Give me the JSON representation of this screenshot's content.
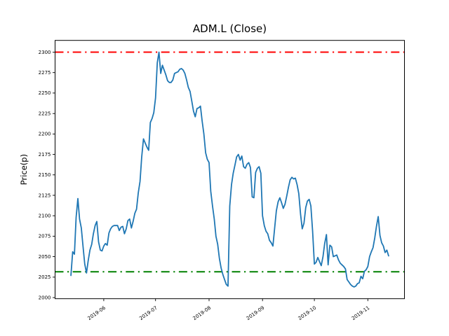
{
  "window": {
    "background": "#ffffff"
  },
  "chart_data": {
    "type": "line",
    "title": "ADM.L (Close)",
    "ylabel": "Price(p)",
    "xlabel": "",
    "legend": "none",
    "grid": false,
    "series_name": "Close price",
    "series_color": "#1f77b4",
    "x_start_date": "2019-05-13",
    "x_end_date": "2019-11-13",
    "x_tick_labels": [
      "2019-06",
      "2019-07",
      "2019-08",
      "2019-09",
      "2019-10",
      "2019-11"
    ],
    "x_tick_day_offsets": [
      19,
      49,
      80,
      111,
      141,
      172
    ],
    "y_ticks": [
      2000,
      2025,
      2050,
      2075,
      2100,
      2125,
      2150,
      2175,
      2200,
      2225,
      2250,
      2275,
      2300
    ],
    "ylim": [
      1998.6,
      2314.4
    ],
    "xlim_days": [
      -9.2,
      193.2
    ],
    "thresholds": [
      {
        "name": "upper-threshold",
        "value": 2300,
        "color": "#ff0000",
        "style": "dashdot"
      },
      {
        "name": "lower-threshold",
        "value": 2031.5,
        "color": "#008000",
        "style": "dashdot"
      }
    ],
    "values": [
      2027,
      2056,
      2053,
      2098,
      2121,
      2096,
      2085,
      2062,
      2041,
      2030,
      2045,
      2058,
      2065,
      2078,
      2088,
      2093,
      2068,
      2058,
      2057,
      2063,
      2066,
      2064,
      2079,
      2084,
      2087,
      2088,
      2088,
      2088,
      2082,
      2086,
      2087,
      2078,
      2084,
      2094,
      2096,
      2085,
      2093,
      2103,
      2108,
      2128,
      2142,
      2172,
      2194,
      2189,
      2184,
      2180,
      2214,
      2219,
      2226,
      2244,
      2287,
      2300,
      2274,
      2284,
      2278,
      2272,
      2265,
      2263,
      2263,
      2266,
      2274,
      2275,
      2276,
      2279,
      2280,
      2278,
      2274,
      2266,
      2257,
      2252,
      2240,
      2228,
      2221,
      2231,
      2232,
      2234,
      2216,
      2200,
      2177,
      2169,
      2165,
      2130,
      2112,
      2096,
      2075,
      2065,
      2048,
      2036,
      2028,
      2022,
      2016,
      2014,
      2112,
      2138,
      2152,
      2162,
      2172,
      2175,
      2168,
      2173,
      2160,
      2158,
      2163,
      2165,
      2159,
      2123,
      2122,
      2153,
      2158,
      2160,
      2152,
      2100,
      2088,
      2081,
      2078,
      2070,
      2067,
      2063,
      2085,
      2106,
      2117,
      2122,
      2116,
      2109,
      2114,
      2124,
      2135,
      2144,
      2147,
      2145,
      2146,
      2138,
      2127,
      2102,
      2084,
      2091,
      2110,
      2118,
      2120,
      2112,
      2081,
      2041,
      2043,
      2049,
      2044,
      2039,
      2050,
      2066,
      2077,
      2040,
      2064,
      2062,
      2050,
      2051,
      2052,
      2046,
      2042,
      2040,
      2038,
      2035,
      2022,
      2019,
      2016,
      2014,
      2013,
      2014,
      2017,
      2018,
      2026,
      2023,
      2032,
      2034,
      2038,
      2050,
      2056,
      2061,
      2073,
      2087,
      2099,
      2076,
      2067,
      2063,
      2055,
      2058,
      2051
    ]
  }
}
